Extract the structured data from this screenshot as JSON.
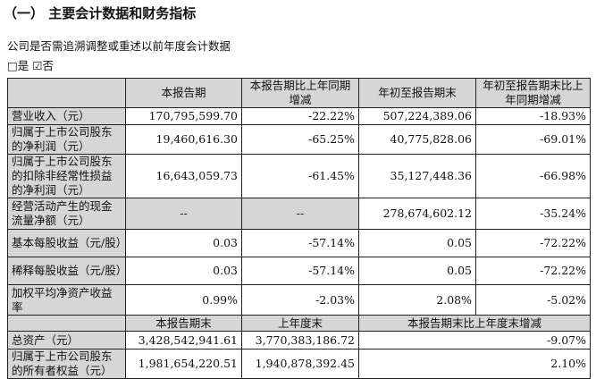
{
  "section_title": "（一） 主要会计数据和财务指标",
  "question": "公司是否需追溯调整或重述以前年度会计数据",
  "options": {
    "yes": "□是",
    "no": "☑否"
  },
  "table": {
    "header": [
      "",
      "本报告期",
      "本报告期比上年同期增减",
      "年初至报告期末",
      "年初至报告期末比上年同期增减"
    ],
    "rows": [
      {
        "label": "营业收入（元）",
        "values": [
          "170,795,599.70",
          "-22.22%",
          "507,224,389.06",
          "-18.93%"
        ]
      },
      {
        "label": "归属于上市公司股东的净利润（元）",
        "values": [
          "19,460,616.30",
          "-65.25%",
          "40,775,828.06",
          "-69.01%"
        ]
      },
      {
        "label": "归属于上市公司股东的扣除非经常性损益的净利润（元）",
        "values": [
          "16,643,059.73",
          "-61.45%",
          "35,127,448.36",
          "-66.98%"
        ]
      },
      {
        "label": "经营活动产生的现金流量净额（元）",
        "values": [
          "--",
          "--",
          "278,674,602.12",
          "-35.24%"
        ]
      },
      {
        "label": "基本每股收益（元/股）",
        "values": [
          "0.03",
          "-57.14%",
          "0.05",
          "-72.22%"
        ]
      },
      {
        "label": "稀释每股收益（元/股）",
        "values": [
          "0.03",
          "-57.14%",
          "0.05",
          "-72.22%"
        ]
      },
      {
        "label": "加权平均净资产收益率",
        "values": [
          "0.99%",
          "-2.03%",
          "2.08%",
          "-5.02%"
        ]
      }
    ],
    "header2": [
      "",
      "本报告期末",
      "上年度末",
      "本报告期末比上年度末增减"
    ],
    "rows2": [
      {
        "label": "总资产（元）",
        "values": [
          "3,428,542,941.61",
          "3,770,383,186.72",
          "-9.07%"
        ]
      },
      {
        "label": "归属于上市公司股东的所有者权益（元）",
        "values": [
          "1,981,654,220.51",
          "1,940,878,392.45",
          "2.10%"
        ]
      }
    ]
  }
}
